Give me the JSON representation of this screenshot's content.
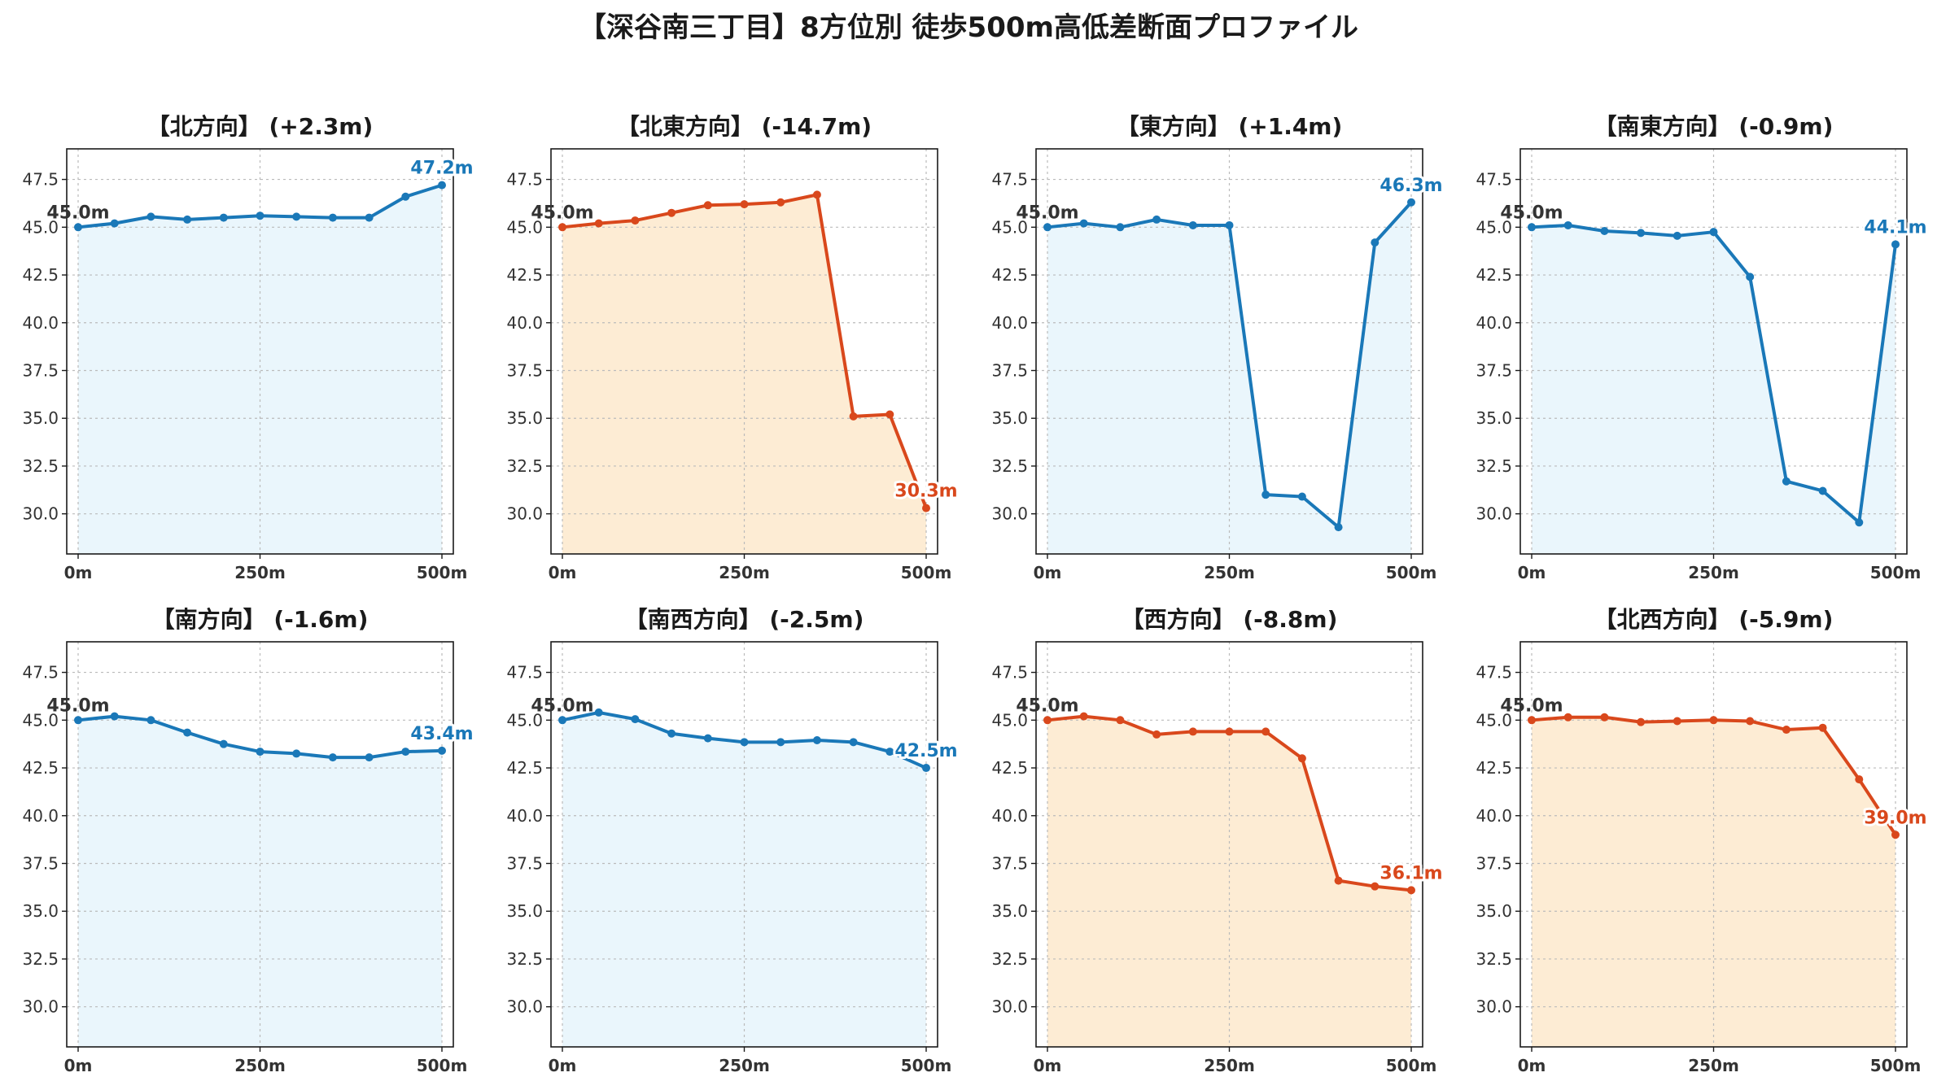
{
  "figure": {
    "title": "【深谷南三丁目】8方位別 徒歩500m高低差断面プロファイル"
  },
  "colors": {
    "up_line": "#1a78b8",
    "up_fill": "#eaf6fc",
    "down_line": "#d9481c",
    "down_fill": "#fdecd4",
    "grid": "#bbbbbb",
    "start_label": "#333333"
  },
  "chart_data": [
    {
      "type": "area",
      "title": "【北方向】 (+2.3m)",
      "trend": "up",
      "x": [
        0,
        50,
        100,
        150,
        200,
        250,
        300,
        350,
        400,
        450,
        500
      ],
      "y": [
        45.0,
        45.2,
        45.55,
        45.4,
        45.5,
        45.6,
        45.55,
        45.5,
        45.5,
        46.6,
        47.2
      ],
      "start_label": "45.0m",
      "end_label": "47.2m",
      "xticks": [
        "0m",
        "250m",
        "500m"
      ],
      "yticks": [
        "30.0",
        "32.5",
        "35.0",
        "37.5",
        "40.0",
        "42.5",
        "45.0",
        "47.5"
      ],
      "xlim": [
        0,
        500
      ],
      "ylim": [
        27.9,
        49.1
      ],
      "grid": true
    },
    {
      "type": "area",
      "title": "【北東方向】 (-14.7m)",
      "trend": "down",
      "x": [
        0,
        50,
        100,
        150,
        200,
        250,
        300,
        350,
        400,
        450,
        500
      ],
      "y": [
        45.0,
        45.2,
        45.35,
        45.75,
        46.15,
        46.2,
        46.3,
        46.7,
        35.1,
        35.2,
        30.3
      ],
      "start_label": "45.0m",
      "end_label": "30.3m",
      "xticks": [
        "0m",
        "250m",
        "500m"
      ],
      "yticks": [
        "30.0",
        "32.5",
        "35.0",
        "37.5",
        "40.0",
        "42.5",
        "45.0",
        "47.5"
      ],
      "xlim": [
        0,
        500
      ],
      "ylim": [
        27.9,
        49.1
      ],
      "grid": true
    },
    {
      "type": "area",
      "title": "【東方向】 (+1.4m)",
      "trend": "up",
      "x": [
        0,
        50,
        100,
        150,
        200,
        250,
        300,
        350,
        400,
        450,
        500
      ],
      "y": [
        45.0,
        45.2,
        45.0,
        45.4,
        45.1,
        45.1,
        31.0,
        30.9,
        29.3,
        44.2,
        46.3
      ],
      "start_label": "45.0m",
      "end_label": "46.3m",
      "xticks": [
        "0m",
        "250m",
        "500m"
      ],
      "yticks": [
        "30.0",
        "32.5",
        "35.0",
        "37.5",
        "40.0",
        "42.5",
        "45.0",
        "47.5"
      ],
      "xlim": [
        0,
        500
      ],
      "ylim": [
        27.9,
        49.1
      ],
      "grid": true
    },
    {
      "type": "area",
      "title": "【南東方向】 (-0.9m)",
      "trend": "up",
      "x": [
        0,
        50,
        100,
        150,
        200,
        250,
        300,
        350,
        400,
        450,
        500
      ],
      "y": [
        45.0,
        45.1,
        44.8,
        44.7,
        44.55,
        44.75,
        42.4,
        31.7,
        31.2,
        29.55,
        44.1
      ],
      "start_label": "45.0m",
      "end_label": "44.1m",
      "xticks": [
        "0m",
        "250m",
        "500m"
      ],
      "yticks": [
        "30.0",
        "32.5",
        "35.0",
        "37.5",
        "40.0",
        "42.5",
        "45.0",
        "47.5"
      ],
      "xlim": [
        0,
        500
      ],
      "ylim": [
        27.9,
        49.1
      ],
      "grid": true
    },
    {
      "type": "area",
      "title": "【南方向】 (-1.6m)",
      "trend": "up",
      "x": [
        0,
        50,
        100,
        150,
        200,
        250,
        300,
        350,
        400,
        450,
        500
      ],
      "y": [
        45.0,
        45.2,
        45.0,
        44.35,
        43.75,
        43.35,
        43.25,
        43.05,
        43.05,
        43.35,
        43.4
      ],
      "start_label": "45.0m",
      "end_label": "43.4m",
      "xticks": [
        "0m",
        "250m",
        "500m"
      ],
      "yticks": [
        "30.0",
        "32.5",
        "35.0",
        "37.5",
        "40.0",
        "42.5",
        "45.0",
        "47.5"
      ],
      "xlim": [
        0,
        500
      ],
      "ylim": [
        27.9,
        49.1
      ],
      "grid": true
    },
    {
      "type": "area",
      "title": "【南西方向】 (-2.5m)",
      "trend": "up",
      "x": [
        0,
        50,
        100,
        150,
        200,
        250,
        300,
        350,
        400,
        450,
        500
      ],
      "y": [
        45.0,
        45.4,
        45.05,
        44.3,
        44.05,
        43.85,
        43.85,
        43.95,
        43.85,
        43.35,
        42.5
      ],
      "start_label": "45.0m",
      "end_label": "42.5m",
      "xticks": [
        "0m",
        "250m",
        "500m"
      ],
      "yticks": [
        "30.0",
        "32.5",
        "35.0",
        "37.5",
        "40.0",
        "42.5",
        "45.0",
        "47.5"
      ],
      "xlim": [
        0,
        500
      ],
      "ylim": [
        27.9,
        49.1
      ],
      "grid": true
    },
    {
      "type": "area",
      "title": "【西方向】 (-8.8m)",
      "trend": "down",
      "x": [
        0,
        50,
        100,
        150,
        200,
        250,
        300,
        350,
        400,
        450,
        500
      ],
      "y": [
        45.0,
        45.2,
        45.0,
        44.25,
        44.4,
        44.4,
        44.4,
        43.0,
        36.6,
        36.3,
        36.1
      ],
      "start_label": "45.0m",
      "end_label": "36.1m",
      "xticks": [
        "0m",
        "250m",
        "500m"
      ],
      "yticks": [
        "30.0",
        "32.5",
        "35.0",
        "37.5",
        "40.0",
        "42.5",
        "45.0",
        "47.5"
      ],
      "xlim": [
        0,
        500
      ],
      "ylim": [
        27.9,
        49.1
      ],
      "grid": true
    },
    {
      "type": "area",
      "title": "【北西方向】 (-5.9m)",
      "trend": "down",
      "x": [
        0,
        50,
        100,
        150,
        200,
        250,
        300,
        350,
        400,
        450,
        500
      ],
      "y": [
        45.0,
        45.15,
        45.15,
        44.9,
        44.95,
        45.0,
        44.95,
        44.5,
        44.6,
        41.9,
        39.0
      ],
      "start_label": "45.0m",
      "end_label": "39.0m",
      "xticks": [
        "0m",
        "250m",
        "500m"
      ],
      "yticks": [
        "30.0",
        "32.5",
        "35.0",
        "37.5",
        "40.0",
        "42.5",
        "45.0",
        "47.5"
      ],
      "xlim": [
        0,
        500
      ],
      "ylim": [
        27.9,
        49.1
      ],
      "grid": true
    }
  ]
}
